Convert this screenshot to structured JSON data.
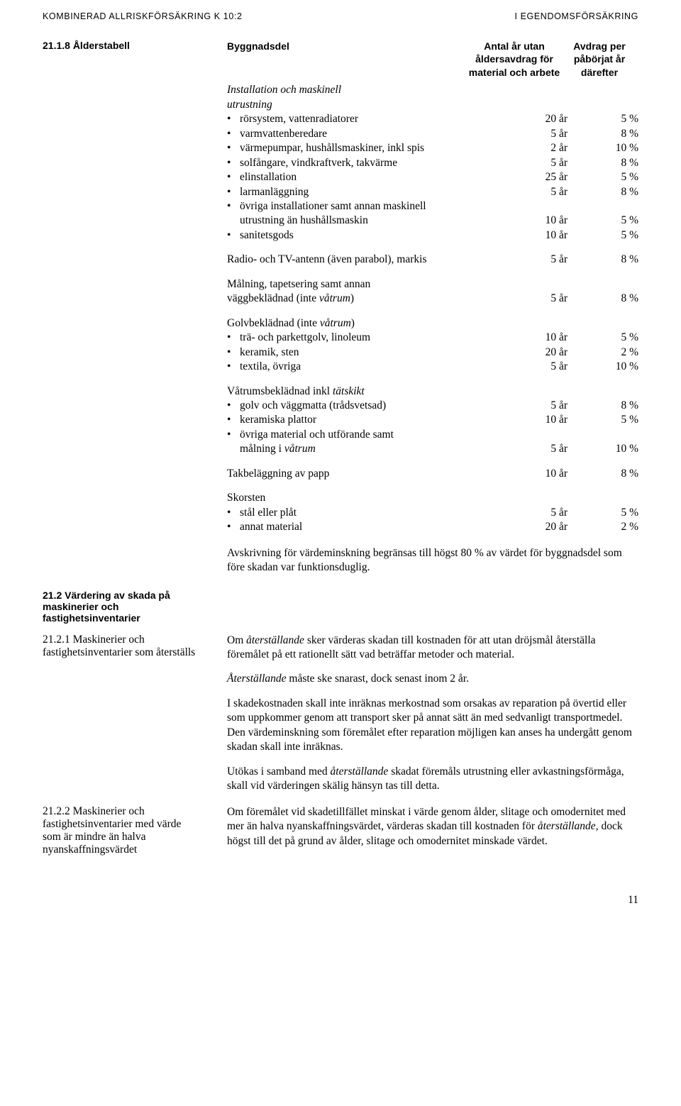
{
  "header": {
    "left": "KOMBINERAD ALLRISKFÖRSÄKRING K 10:2",
    "right": "I EGENDOMSFÖRSÄKRING"
  },
  "main_label": "21.1.8 Ålderstabell",
  "table_header": {
    "col1": "Byggnadsdel",
    "col2_l1": "Antal år utan",
    "col2_l2": "åldersavdrag för",
    "col2_l3": "material och arbete",
    "col3_l1": "Avdrag per",
    "col3_l2": "påbörjat år",
    "col3_l3": "därefter"
  },
  "group1_head_l1": "Installation och maskinell",
  "group1_head_l2": "utrustning",
  "group1": [
    {
      "desc": "rörsystem, vattenradiatorer",
      "c1": "20 år",
      "c2": "5 %"
    },
    {
      "desc": "varmvattenberedare",
      "c1": "5 år",
      "c2": "8 %"
    },
    {
      "desc": "värmepumpar, hushållsmaskiner, inkl spis",
      "c1": "2 år",
      "c2": "10 %"
    },
    {
      "desc": "solfångare, vindkraftverk, takvärme",
      "c1": "5 år",
      "c2": "8 %"
    },
    {
      "desc": "elinstallation",
      "c1": "25 år",
      "c2": "5 %"
    },
    {
      "desc": "larmanläggning",
      "c1": "5 år",
      "c2": "8 %"
    }
  ],
  "group1_extra1_desc_l1": "övriga installationer samt annan maskinell",
  "group1_extra1_desc_l2": "utrustning än hushållsmaskin",
  "group1_extra1_c1": "10 år",
  "group1_extra1_c2": "5 %",
  "group1_extra2": {
    "desc": "sanitetsgods",
    "c1": "10 år",
    "c2": "5 %"
  },
  "radio_row": {
    "desc": "Radio- och TV-antenn (även parabol), markis",
    "c1": "5 år",
    "c2": "8 %"
  },
  "paint_head_l1": "Målning, tapetsering samt annan",
  "paint_head_l2_pre": "väggbeklädnad (inte ",
  "paint_head_l2_it": "våtrum",
  "paint_head_l2_post": ")",
  "paint_c1": "5 år",
  "paint_c2": "8 %",
  "floor_head_pre": "Golvbeklädnad (inte ",
  "floor_head_it": "våtrum",
  "floor_head_post": ")",
  "floor": [
    {
      "desc": "trä- och parkettgolv, linoleum",
      "c1": "10 år",
      "c2": "5 %"
    },
    {
      "desc": "keramik, sten",
      "c1": "20 år",
      "c2": "2 %"
    },
    {
      "desc": "textila, övriga",
      "c1": "5 år",
      "c2": "10 %"
    }
  ],
  "wet_head_pre": "Våtrumsbeklädnad inkl ",
  "wet_head_it": "tätskikt",
  "wet": [
    {
      "desc": "golv och väggmatta (trådsvetsad)",
      "c1": "5 år",
      "c2": "8 %"
    },
    {
      "desc": "keramiska plattor",
      "c1": "10 år",
      "c2": "5 %"
    }
  ],
  "wet_extra_l1": "övriga material och utförande samt",
  "wet_extra_l2_pre": "målning i ",
  "wet_extra_l2_it": "våtrum",
  "wet_extra_c1": "5 år",
  "wet_extra_c2": "10 %",
  "roof_row": {
    "desc": "Takbeläggning av papp",
    "c1": "10 år",
    "c2": "8 %"
  },
  "chimney_head": "Skorsten",
  "chimney": [
    {
      "desc": "stål eller plåt",
      "c1": "5 år",
      "c2": "5 %"
    },
    {
      "desc": "annat material",
      "c1": "20 år",
      "c2": "2 %"
    }
  ],
  "limit_text": "Avskrivning för värdeminskning begränsas till högst 80 % av värdet för byggnadsdel som före skadan var funktionsduglig.",
  "sec212_label": "21.2  Värdering av skada på maskinerier och fastighetsinventarier",
  "sec2121_label": "21.2.1 Maskinerier och fastighetsinventarier som återställs",
  "sec2121_p1_pre": "Om ",
  "sec2121_p1_it": "återställande",
  "sec2121_p1_post": " sker värderas skadan till kostnaden för att utan dröjsmål återställa föremålet på ett rationellt sätt vad beträffar metoder och material.",
  "sec2121_p2_it": "Återställande",
  "sec2121_p2_post": " måste ske snarast, dock senast inom 2 år.",
  "sec2121_p3": "I skadekostnaden skall inte inräknas merkostnad som orsakas av reparation på övertid eller som uppkommer genom att transport sker på annat sätt än med sedvanligt transportmedel. Den värdeminskning som föremålet efter reparation möjligen kan anses ha undergått genom skadan skall inte inräknas.",
  "sec2121_p4_pre": "Utökas i samband med ",
  "sec2121_p4_it": "återställande",
  "sec2121_p4_post": " skadat föremåls utrustning eller avkastningsförmåga, skall vid värderingen skälig hänsyn tas till detta.",
  "sec2122_label": "21.2.2 Maskinerier och fastighetsinventarier med värde som är mindre än halva nyanskaffningsvärdet",
  "sec2122_p_pre": "Om föremålet vid skadetillfället minskat i värde genom ålder, slitage och omodernitet med mer än halva nyanskaffningsvärdet, värderas skadan till kostnaden för ",
  "sec2122_p_it": "återställande",
  "sec2122_p_post": ", dock högst till det på grund av ålder, slitage och omodernitet minskade värdet.",
  "page_num": "11"
}
